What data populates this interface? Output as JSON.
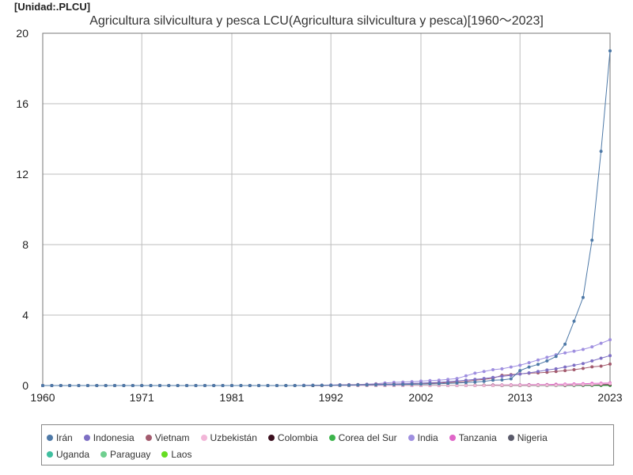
{
  "unit_label": "[Unidad:.PLCU]",
  "chart_data": {
    "type": "line",
    "title": "Agricultura silvicultura y pesca LCU(Agricultura silvicultura y pesca)[1960～2023]",
    "unit": "[Unidad:.PLCU]",
    "xlim": [
      1960,
      2023
    ],
    "ylim": [
      0,
      20
    ],
    "x_ticks": [
      1960,
      1971,
      1981,
      1992,
      2002,
      2013,
      2023
    ],
    "y_ticks": [
      0,
      4,
      8,
      12,
      16,
      20
    ],
    "grid": true,
    "legend_position": "bottom",
    "x": [
      1960,
      1961,
      1962,
      1963,
      1964,
      1965,
      1966,
      1967,
      1968,
      1969,
      1970,
      1971,
      1972,
      1973,
      1974,
      1975,
      1976,
      1977,
      1978,
      1979,
      1980,
      1981,
      1982,
      1983,
      1984,
      1985,
      1986,
      1987,
      1988,
      1989,
      1990,
      1991,
      1992,
      1993,
      1994,
      1995,
      1996,
      1997,
      1998,
      1999,
      2000,
      2001,
      2002,
      2003,
      2004,
      2005,
      2006,
      2007,
      2008,
      2009,
      2010,
      2011,
      2012,
      2013,
      2014,
      2015,
      2016,
      2017,
      2018,
      2019,
      2020,
      2021,
      2022,
      2023
    ],
    "series": [
      {
        "name": "Irán",
        "color": "#4e79a7",
        "values": [
          0,
          0,
          0,
          0,
          0,
          0,
          0,
          0,
          0,
          0,
          0,
          0,
          0,
          0,
          0,
          0,
          0,
          0,
          0,
          0,
          0,
          0,
          0,
          0,
          0,
          0,
          0,
          0,
          0,
          0,
          0.01,
          0.01,
          0.01,
          0.02,
          0.02,
          0.03,
          0.03,
          0.04,
          0.05,
          0.05,
          0.06,
          0.07,
          0.08,
          0.09,
          0.1,
          0.12,
          0.14,
          0.17,
          0.2,
          0.24,
          0.3,
          0.32,
          0.38,
          0.85,
          1.05,
          1.2,
          1.4,
          1.65,
          2.35,
          3.65,
          5.0,
          8.25,
          13.3,
          19.0
        ]
      },
      {
        "name": "Indonesia",
        "color": "#7e6fc4",
        "values": [
          0,
          0,
          0,
          0,
          0,
          0,
          0,
          0,
          0,
          0,
          0,
          0,
          0,
          0,
          0,
          0,
          0,
          0,
          0,
          0,
          0,
          0,
          0,
          0,
          0,
          0,
          0,
          0,
          0,
          0.01,
          0.01,
          0.02,
          0.02,
          0.03,
          0.03,
          0.04,
          0.05,
          0.06,
          0.07,
          0.08,
          0.1,
          0.12,
          0.14,
          0.16,
          0.18,
          0.22,
          0.26,
          0.3,
          0.35,
          0.4,
          0.46,
          0.52,
          0.58,
          0.65,
          0.72,
          0.8,
          0.88,
          0.95,
          1.05,
          1.15,
          1.25,
          1.4,
          1.55,
          1.7
        ]
      },
      {
        "name": "Vietnam",
        "color": "#a35b6e",
        "values": [
          0,
          0,
          0,
          0,
          0,
          0,
          0,
          0,
          0,
          0,
          0,
          0,
          0,
          0,
          0,
          0,
          0,
          0,
          0,
          0,
          0,
          0,
          0,
          0,
          0,
          0,
          0,
          0,
          0,
          0,
          0.01,
          0.01,
          0.02,
          0.03,
          0.04,
          0.05,
          0.06,
          0.07,
          0.08,
          0.09,
          0.1,
          0.11,
          0.12,
          0.13,
          0.15,
          0.17,
          0.2,
          0.23,
          0.3,
          0.35,
          0.42,
          0.58,
          0.62,
          0.66,
          0.7,
          0.72,
          0.75,
          0.8,
          0.85,
          0.9,
          0.97,
          1.06,
          1.1,
          1.22
        ]
      },
      {
        "name": "Uzbekistán",
        "color": "#f2b6d8",
        "values": [
          null,
          null,
          null,
          null,
          null,
          null,
          null,
          null,
          null,
          null,
          null,
          null,
          null,
          null,
          null,
          null,
          null,
          null,
          null,
          null,
          null,
          null,
          null,
          null,
          null,
          null,
          null,
          null,
          null,
          null,
          null,
          0,
          0,
          0,
          0,
          0,
          0,
          0,
          0,
          0,
          0,
          0,
          0,
          0,
          0,
          0,
          0,
          0,
          0,
          0,
          0,
          0.01,
          0.01,
          0.01,
          0.01,
          0.02,
          0.02,
          0.02,
          0.03,
          0.04,
          0.05,
          0.06,
          0.08,
          0.1
        ]
      },
      {
        "name": "Colombia",
        "color": "#3b0f1e",
        "values": [
          0,
          0,
          0,
          0,
          0,
          0,
          0,
          0,
          0,
          0,
          0,
          0,
          0,
          0,
          0,
          0,
          0,
          0,
          0,
          0,
          0,
          0,
          0,
          0,
          0,
          0,
          0,
          0,
          0,
          0,
          0,
          0,
          0,
          0,
          0,
          0,
          0,
          0,
          0,
          0,
          0,
          0,
          0,
          0,
          0,
          0,
          0,
          0,
          0,
          0.01,
          0.01,
          0.01,
          0.01,
          0.01,
          0.01,
          0.02,
          0.02,
          0.02,
          0.02,
          0.03,
          0.03,
          0.04,
          0.05,
          0.06
        ]
      },
      {
        "name": "Corea del Sur",
        "color": "#3cb44b",
        "values": [
          0,
          0,
          0,
          0,
          0,
          0,
          0,
          0,
          0,
          0,
          0,
          0,
          0,
          0,
          0,
          0,
          0,
          0,
          0,
          0,
          0,
          0,
          0,
          0,
          0,
          0,
          0,
          0,
          0,
          0,
          0,
          0,
          0,
          0,
          0,
          0,
          0,
          0,
          0,
          0,
          0.01,
          0.01,
          0.01,
          0.01,
          0.01,
          0.01,
          0.01,
          0.01,
          0.01,
          0.01,
          0.01,
          0.01,
          0.01,
          0.01,
          0.02,
          0.02,
          0.02,
          0.02,
          0.02,
          0.02,
          0.02,
          0.02,
          0.02,
          0.02
        ]
      },
      {
        "name": "India",
        "color": "#9f8fe0",
        "values": [
          0,
          0,
          0,
          0,
          0,
          0,
          0,
          0,
          0,
          0,
          0,
          0,
          0,
          0,
          0,
          0,
          0,
          0,
          0,
          0,
          0,
          0,
          0,
          0,
          0,
          0,
          0,
          0,
          0,
          0.01,
          0.02,
          0.02,
          0.03,
          0.04,
          0.05,
          0.06,
          0.08,
          0.1,
          0.15,
          0.18,
          0.2,
          0.22,
          0.25,
          0.28,
          0.3,
          0.35,
          0.4,
          0.55,
          0.7,
          0.8,
          0.9,
          0.95,
          1.05,
          1.15,
          1.3,
          1.45,
          1.6,
          1.75,
          1.85,
          1.95,
          2.05,
          2.2,
          2.4,
          2.6
        ]
      },
      {
        "name": "Tanzania",
        "color": "#e066c8",
        "values": [
          0,
          0,
          0,
          0,
          0,
          0,
          0,
          0,
          0,
          0,
          0,
          0,
          0,
          0,
          0,
          0,
          0,
          0,
          0,
          0,
          0,
          0,
          0,
          0,
          0,
          0,
          0,
          0,
          0,
          0,
          0,
          0,
          0,
          0,
          0,
          0,
          0,
          0,
          0,
          0,
          0.01,
          0.01,
          0.01,
          0.01,
          0.01,
          0.01,
          0.01,
          0.02,
          0.02,
          0.02,
          0.03,
          0.03,
          0.04,
          0.04,
          0.05,
          0.05,
          0.06,
          0.07,
          0.08,
          0.09,
          0.1,
          0.12,
          0.13,
          0.15
        ]
      },
      {
        "name": "Nigeria",
        "color": "#5a5a6a",
        "values": [
          0,
          0,
          0,
          0,
          0,
          0,
          0,
          0,
          0,
          0,
          0,
          0,
          0,
          0,
          0,
          0,
          0,
          0,
          0,
          0,
          0,
          0,
          0,
          0,
          0,
          0,
          0,
          0,
          0,
          0,
          0,
          0,
          0,
          0,
          0,
          0,
          0,
          0,
          0,
          0,
          0,
          0,
          0,
          0,
          0,
          0,
          0,
          0,
          0,
          0,
          0,
          0,
          0,
          0,
          0,
          0.01,
          0.01,
          0.01,
          0.01,
          0.01,
          0.02,
          0.02,
          0.03,
          0.04
        ]
      },
      {
        "name": "Uganda",
        "color": "#3fbf9f",
        "values": [
          0,
          0,
          0,
          0,
          0,
          0,
          0,
          0,
          0,
          0,
          0,
          0,
          0,
          0,
          0,
          0,
          0,
          0,
          0,
          0,
          0,
          0,
          0,
          0,
          0,
          0,
          0,
          0,
          0,
          0,
          0,
          0,
          0,
          0,
          0,
          0,
          0,
          0,
          0,
          0,
          0,
          0,
          0,
          0,
          0,
          0,
          0,
          0,
          0,
          0,
          0,
          0,
          0,
          0,
          0.01,
          0.01,
          0.01,
          0.01,
          0.01,
          0.01,
          0.01,
          0.02,
          0.02,
          0.02
        ]
      },
      {
        "name": "Paraguay",
        "color": "#6fcf8f",
        "values": [
          0,
          0,
          0,
          0,
          0,
          0,
          0,
          0,
          0,
          0,
          0,
          0,
          0,
          0,
          0,
          0,
          0,
          0,
          0,
          0,
          0,
          0,
          0,
          0,
          0,
          0,
          0,
          0,
          0,
          0,
          0,
          0,
          0,
          0,
          0,
          0,
          0,
          0,
          0,
          0,
          0,
          0,
          0,
          0,
          0,
          0,
          0,
          0,
          0,
          0,
          0,
          0,
          0,
          0,
          0,
          0,
          0,
          0,
          0.01,
          0.01,
          0.01,
          0.01,
          0.01,
          0.02
        ]
      },
      {
        "name": "Laos",
        "color": "#66dd22",
        "values": [
          0,
          0,
          0,
          0,
          0,
          0,
          0,
          0,
          0,
          0,
          0,
          0,
          0,
          0,
          0,
          0,
          0,
          0,
          0,
          0,
          0,
          0,
          0,
          0,
          0,
          0,
          0,
          0,
          0,
          0,
          0,
          0,
          0,
          0,
          0,
          0,
          0,
          0,
          0,
          0,
          0,
          0,
          0,
          0,
          0,
          0,
          0,
          0,
          0,
          0,
          0,
          0,
          0,
          0,
          0,
          0,
          0,
          0,
          0.01,
          0.01,
          0.01,
          0.01,
          0.01,
          0.01
        ]
      }
    ]
  }
}
